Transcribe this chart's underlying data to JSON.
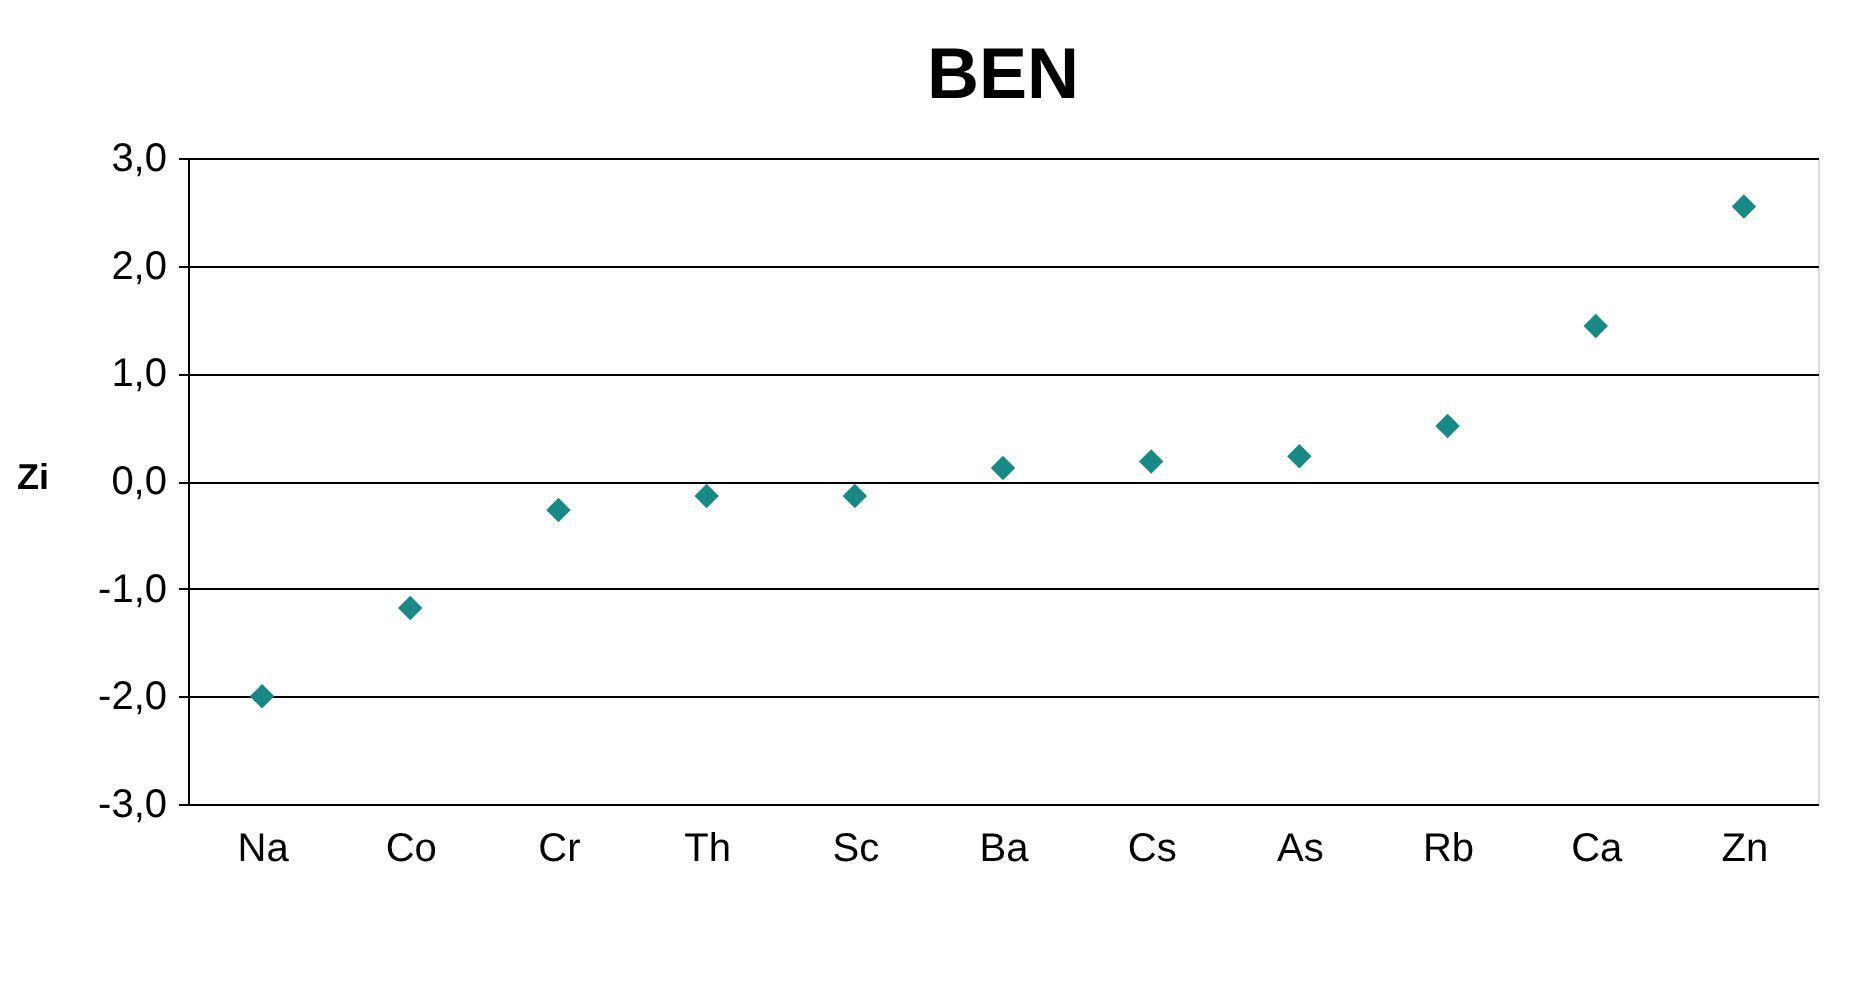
{
  "chart_data": {
    "type": "scatter",
    "title": "BEN",
    "ylabel": "Zi",
    "categories": [
      "Na",
      "Co",
      "Cr",
      "Th",
      "Sc",
      "Ba",
      "Cs",
      "As",
      "Rb",
      "Ca",
      "Zn"
    ],
    "series": [
      {
        "color": "#178a86",
        "values": [
          -2.0,
          -1.18,
          -0.27,
          -0.14,
          -0.14,
          0.12,
          0.18,
          0.23,
          0.51,
          1.44,
          2.55
        ]
      }
    ],
    "ylim": [
      -3,
      3
    ],
    "yticks": [
      {
        "value": -3,
        "label": "-3,0"
      },
      {
        "value": -2,
        "label": "-2,0"
      },
      {
        "value": -1,
        "label": "-1,0"
      },
      {
        "value": 0,
        "label": "0,0"
      },
      {
        "value": 1,
        "label": "1,0"
      },
      {
        "value": 2,
        "label": "2,0"
      },
      {
        "value": 3,
        "label": "3,0"
      }
    ],
    "grid": "y",
    "marker": "diamond",
    "legend": false
  }
}
